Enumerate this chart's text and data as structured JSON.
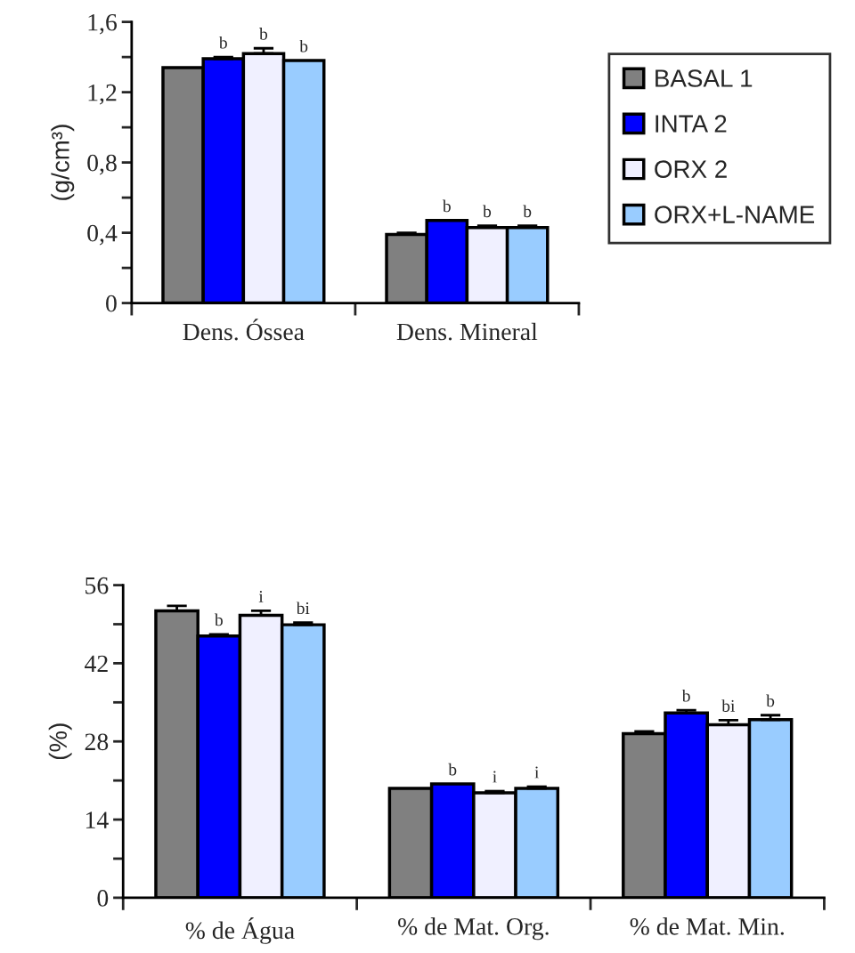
{
  "chart_data": [
    {
      "type": "bar",
      "ylabel": "(g/cm³)",
      "categories": [
        "Dens. Óssea",
        "Dens. Mineral"
      ],
      "ylim": [
        0,
        1.6
      ],
      "yticks": [
        {
          "value": 0,
          "label": "0"
        },
        {
          "value": 0.2,
          "label": null
        },
        {
          "value": 0.4,
          "label": "0,4"
        },
        {
          "value": 0.6,
          "label": null
        },
        {
          "value": 0.8,
          "label": "0,8"
        },
        {
          "value": 1.0,
          "label": null
        },
        {
          "value": 1.2,
          "label": "1,2"
        },
        {
          "value": 1.4,
          "label": null
        },
        {
          "value": 1.6,
          "label": "1,6"
        }
      ],
      "legend": "right",
      "grid": false,
      "series": [
        {
          "name": "BASAL 1",
          "color": "#808080",
          "values": [
            1.34,
            0.39
          ],
          "errors": [
            null,
            0.01
          ]
        },
        {
          "name": "INTA 2",
          "color": "#0000ff",
          "values": [
            1.39,
            0.47
          ],
          "errors": [
            0.01,
            null
          ],
          "value_labels": [
            "b",
            "b"
          ]
        },
        {
          "name": "ORX 2",
          "color": "#f0f0ff",
          "values": [
            1.42,
            0.43
          ],
          "errors": [
            0.03,
            0.01
          ],
          "value_labels": [
            "b",
            "b"
          ]
        },
        {
          "name": "ORX+L-NAME",
          "color": "#99ccff",
          "values": [
            1.38,
            0.43
          ],
          "errors": [
            null,
            0.01
          ],
          "value_labels": [
            "b",
            "b"
          ]
        }
      ]
    },
    {
      "type": "bar",
      "ylabel": "(%)",
      "categories": [
        "% de Água",
        "% de Mat. Org.",
        "% de Mat. Min."
      ],
      "ylim": [
        0,
        56
      ],
      "yticks": [
        0,
        {
          "value": 7,
          "label": null
        },
        14,
        {
          "value": 21,
          "label": null
        },
        28,
        {
          "value": 35,
          "label": null
        },
        42,
        {
          "value": 49,
          "label": null
        },
        56
      ],
      "grid": false,
      "series": [
        {
          "color": "#808080",
          "values": [
            51.4,
            19.6,
            29.4
          ],
          "errors": [
            0.9,
            null,
            0.4
          ]
        },
        {
          "color": "#0000ff",
          "values": [
            46.9,
            20.4,
            33.1
          ],
          "errors": [
            0.3,
            null,
            0.5
          ],
          "value_labels": [
            "b",
            "b",
            "b"
          ]
        },
        {
          "color": "#f0f0ff",
          "values": [
            50.6,
            18.8,
            31.0
          ],
          "errors": [
            0.8,
            0.3,
            0.8
          ],
          "value_labels": [
            "i",
            "i",
            "bi"
          ]
        },
        {
          "color": "#99ccff",
          "values": [
            48.9,
            19.6,
            31.9
          ],
          "errors": [
            0.4,
            0.3,
            0.8
          ],
          "value_labels": [
            "bi",
            "i",
            "b"
          ]
        }
      ]
    }
  ]
}
